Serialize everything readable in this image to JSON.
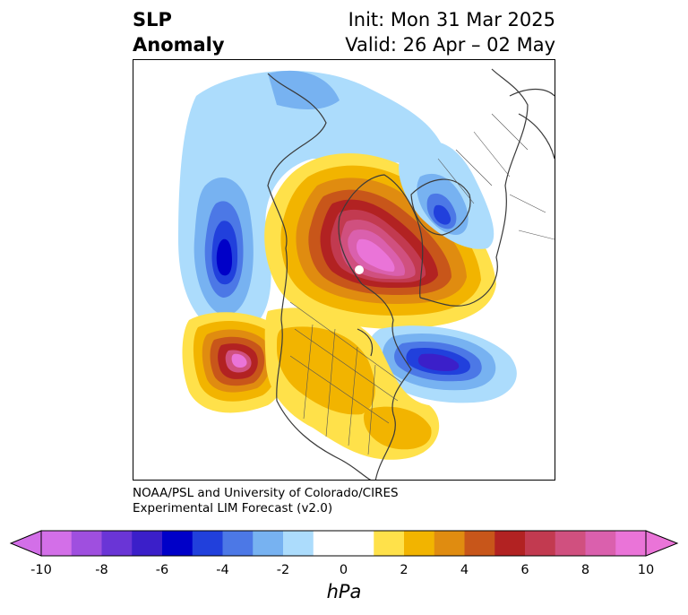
{
  "header": {
    "title_line1": "SLP",
    "title_line2": "Anomaly",
    "init": "Init: Mon 31 Mar 2025",
    "valid": "Valid: 26 Apr – 02 May"
  },
  "credit": {
    "line1": "NOAA/PSL and University of Colorado/CIRES",
    "line2": "Experimental LIM Forecast (v2.0)"
  },
  "colorbar": {
    "unit": "hPa",
    "ticks": [
      "-10",
      "-8",
      "-6",
      "-4",
      "-2",
      "0",
      "2",
      "4",
      "6",
      "8",
      "10"
    ],
    "colors": {
      "m9": "#d36fe8",
      "m8": "#9f4fdf",
      "m7": "#6a35d6",
      "m6": "#3b1fc9",
      "m5": "#0000c8",
      "m4": "#2140dc",
      "m3": "#4c78e6",
      "m2": "#77b2f1",
      "m1": "#acdcfc",
      "zero": "#ffffff",
      "p1": "#ffe14a",
      "p2": "#f2b400",
      "p3": "#e08c10",
      "p4": "#c8561a",
      "p5": "#b22222",
      "p6": "#c23a50",
      "p7": "#d0507f",
      "p8": "#da60ad",
      "p9": "#ea74d8"
    }
  }
}
